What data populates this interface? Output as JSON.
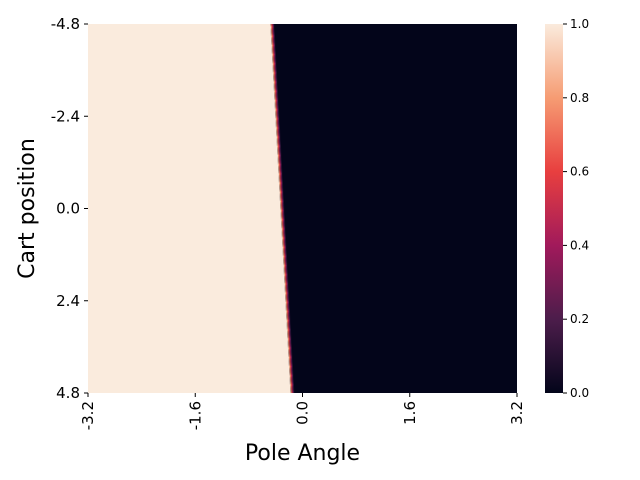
{
  "chart_data": {
    "type": "heatmap",
    "title": "",
    "xlabel": "Pole Angle",
    "ylabel": "Cart position",
    "x_ticks": [
      "-3.2",
      "-1.6",
      "0.0",
      "1.6",
      "3.2"
    ],
    "y_ticks": [
      "-4.8",
      "-2.4",
      "0.0",
      "2.4",
      "4.8"
    ],
    "xlim": [
      -3.2,
      3.2
    ],
    "ylim": [
      -4.8,
      4.8
    ],
    "y_inverted": true,
    "colorbar": {
      "range": [
        0.0,
        1.0
      ],
      "ticks": [
        "0.0",
        "0.2",
        "0.4",
        "0.6",
        "0.8",
        "1.0"
      ],
      "colormap": "rocket",
      "stops": [
        "#03051a",
        "#4c1d4b",
        "#a11a5b",
        "#e83f3f",
        "#f69c73",
        "#faebdd"
      ]
    },
    "boundary": {
      "description_free": true,
      "points": [
        {
          "cart_position": -4.8,
          "pole_angle": -0.48
        },
        {
          "cart_position": 4.8,
          "pole_angle": -0.18
        }
      ],
      "value_left": 1.0,
      "value_right": 0.0,
      "transition_width": 0.06
    }
  }
}
